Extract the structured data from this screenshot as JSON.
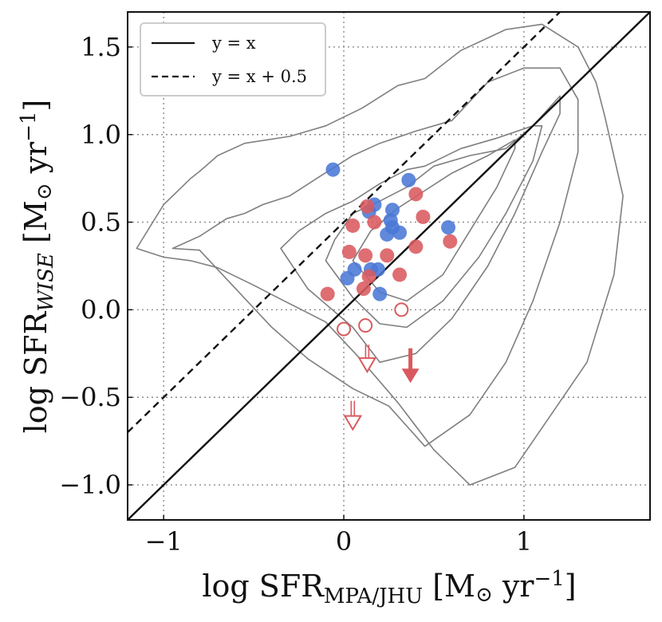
{
  "chart_data": {
    "type": "scatter",
    "xlim": [
      -1.2,
      1.7
    ],
    "ylim": [
      -1.2,
      1.7
    ],
    "xticks": [
      -1,
      0,
      1
    ],
    "xtick_labels": [
      "−1",
      "0",
      "1"
    ],
    "yticks": [
      -1.0,
      -0.5,
      0.0,
      0.5,
      1.0,
      1.5
    ],
    "ytick_labels": [
      "−1.0",
      "−0.5",
      "0.0",
      "0.5",
      "1.0",
      "1.5"
    ],
    "grid": true,
    "xlabel": {
      "main": "log SFR",
      "sub": "MPA/JHU",
      "unit_open": " [M",
      "sun": "⊙",
      "unit_mid": " yr",
      "sup": "−1",
      "unit_close": "]"
    },
    "ylabel": {
      "main": "log SFR",
      "sub": "WISE",
      "unit_open": " [M",
      "sun": "⊙",
      "unit_mid": " yr",
      "sup": "−1",
      "unit_close": "]"
    },
    "legend": {
      "placement": "top-left",
      "entries": [
        {
          "label": "y = x",
          "style": "solid"
        },
        {
          "label": "y = x + 0.5",
          "style": "dashed"
        }
      ]
    },
    "lines": [
      {
        "name": "y = x",
        "slope": 1,
        "intercept": 0,
        "style": "solid"
      },
      {
        "name": "y = x + 0.5",
        "slope": 1,
        "intercept": 0.5,
        "style": "dashed"
      }
    ],
    "contours": [
      {
        "level": 1,
        "x": [
          -1.15,
          -1.0,
          -0.85,
          -0.7,
          -0.5,
          -0.35,
          -0.1,
          0.1,
          0.3,
          0.5,
          0.7,
          0.95,
          1.15,
          1.35,
          1.5,
          1.55,
          1.45,
          1.4,
          1.3,
          1.1,
          0.9,
          0.65,
          0.45,
          0.3,
          0.1,
          -0.1,
          -0.3,
          -0.55,
          -0.7,
          -0.8,
          -0.85,
          -1.0,
          -1.15
        ],
        "y": [
          0.35,
          0.3,
          0.28,
          0.24,
          0.14,
          0.06,
          -0.07,
          -0.29,
          -0.53,
          -0.8,
          -1.0,
          -0.9,
          -0.6,
          -0.3,
          0.2,
          0.65,
          1.1,
          1.3,
          1.5,
          1.63,
          1.6,
          1.48,
          1.32,
          1.28,
          1.15,
          1.05,
          0.99,
          0.95,
          0.88,
          0.79,
          0.75,
          0.6,
          0.35
        ]
      },
      {
        "level": 2,
        "x": [
          -0.95,
          -0.8,
          -0.7,
          -0.6,
          -0.4,
          -0.2,
          0.05,
          0.25,
          0.45,
          0.7,
          0.9,
          1.05,
          1.2,
          1.3,
          1.3,
          1.2,
          1.0,
          0.8,
          0.6,
          0.4,
          0.2,
          0.05,
          -0.15,
          -0.3,
          -0.45,
          -0.55,
          -0.65,
          -0.8,
          -0.95
        ],
        "y": [
          0.35,
          0.34,
          0.23,
          0.12,
          -0.1,
          -0.28,
          -0.45,
          -0.55,
          -0.78,
          -0.6,
          -0.3,
          0.05,
          0.5,
          0.9,
          1.2,
          1.38,
          1.38,
          1.3,
          1.08,
          1.02,
          0.95,
          0.88,
          0.75,
          0.65,
          0.6,
          0.55,
          0.52,
          0.42,
          0.35
        ]
      },
      {
        "level": 3,
        "x": [
          -0.35,
          -0.2,
          0.05,
          0.2,
          0.4,
          0.6,
          0.8,
          0.95,
          1.1,
          1.2,
          1.2,
          1.05,
          0.85,
          0.65,
          0.45,
          0.35,
          0.2,
          0.05,
          -0.1,
          -0.25,
          -0.35
        ],
        "y": [
          0.35,
          0.12,
          -0.1,
          -0.3,
          -0.25,
          -0.05,
          0.25,
          0.55,
          0.9,
          1.12,
          1.22,
          1.05,
          0.98,
          0.92,
          0.82,
          0.8,
          0.72,
          0.62,
          0.55,
          0.45,
          0.35
        ]
      },
      {
        "level": 4,
        "x": [
          -0.1,
          0.05,
          0.2,
          0.35,
          0.55,
          0.75,
          0.9,
          1.05,
          1.1,
          1.05,
          0.9,
          0.7,
          0.5,
          0.35,
          0.2,
          0.05,
          -0.05,
          -0.1
        ],
        "y": [
          0.28,
          0.07,
          -0.08,
          -0.1,
          0.05,
          0.3,
          0.55,
          0.85,
          1.05,
          1.05,
          0.92,
          0.88,
          0.82,
          0.7,
          0.62,
          0.55,
          0.4,
          0.28
        ]
      },
      {
        "level": 5,
        "x": [
          0.05,
          0.2,
          0.35,
          0.55,
          0.7,
          0.85,
          0.95,
          0.95,
          0.8,
          0.6,
          0.45,
          0.3,
          0.15,
          0.05
        ],
        "y": [
          0.28,
          0.1,
          0.05,
          0.2,
          0.45,
          0.7,
          0.92,
          0.97,
          0.88,
          0.78,
          0.68,
          0.58,
          0.45,
          0.28
        ]
      }
    ],
    "series": [
      {
        "name": "blue",
        "color": "#4a78d6",
        "marker": "filled",
        "x": [
          -0.06,
          0.36,
          0.17,
          0.27,
          0.14,
          0.26,
          0.27,
          0.24,
          0.31,
          0.58,
          0.06,
          0.15,
          0.19,
          0.02,
          0.2
        ],
        "y": [
          0.8,
          0.74,
          0.6,
          0.57,
          0.56,
          0.51,
          0.47,
          0.43,
          0.44,
          0.47,
          0.23,
          0.23,
          0.23,
          0.18,
          0.09
        ]
      },
      {
        "name": "red",
        "color": "#d95a5e",
        "marker": "filled",
        "x": [
          0.4,
          0.13,
          0.44,
          0.17,
          0.05,
          0.59,
          0.4,
          0.03,
          0.12,
          0.24,
          0.14,
          0.31,
          0.11,
          -0.09
        ],
        "y": [
          0.66,
          0.59,
          0.53,
          0.5,
          0.48,
          0.39,
          0.36,
          0.33,
          0.31,
          0.31,
          0.19,
          0.2,
          0.12,
          0.09
        ]
      },
      {
        "name": "red-open",
        "color": "#d95a5e",
        "marker": "open",
        "x": [
          0.32,
          0.0,
          0.12
        ],
        "y": [
          0.0,
          -0.11,
          -0.09
        ]
      }
    ],
    "upper_limits": [
      {
        "x": 0.13,
        "y_from": -0.2,
        "y_to": -0.34,
        "style": "open-double"
      },
      {
        "x": 0.05,
        "y_from": -0.52,
        "y_to": -0.67,
        "style": "open-double"
      },
      {
        "x": 0.37,
        "y_from": -0.22,
        "y_to": -0.4,
        "style": "filled"
      }
    ]
  }
}
